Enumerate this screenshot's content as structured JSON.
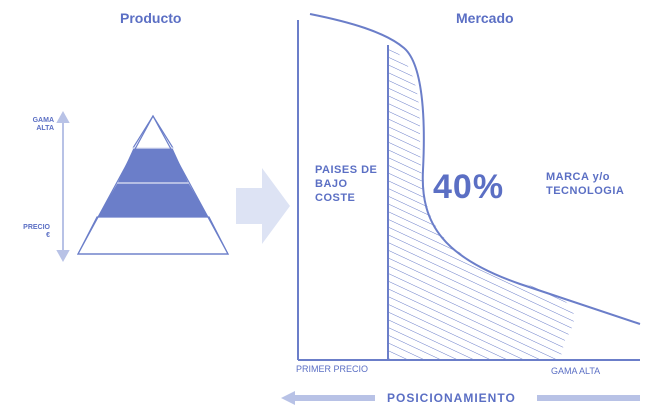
{
  "left_panel": {
    "title": "Producto",
    "top_label": [
      "GAMA",
      "ALTA"
    ],
    "bottom_label": [
      "PRECIO",
      "€"
    ]
  },
  "right_panel": {
    "title": "Mercado",
    "left_region_label": [
      "PAISES DE",
      "BAJO",
      "COSTE"
    ],
    "share": "40%",
    "right_region_label": [
      "MARCA y/o",
      "TECNOLOGIA"
    ],
    "x_axis_left": "PRIMER PRECIO",
    "x_axis_right": "GAMA ALTA",
    "bottom_label": "POSICIONAMIENTO"
  },
  "colors": {
    "accent": "#5b6fc4",
    "pyramid_fill": "#6b7ec9",
    "arrow": "#dde3f4"
  }
}
